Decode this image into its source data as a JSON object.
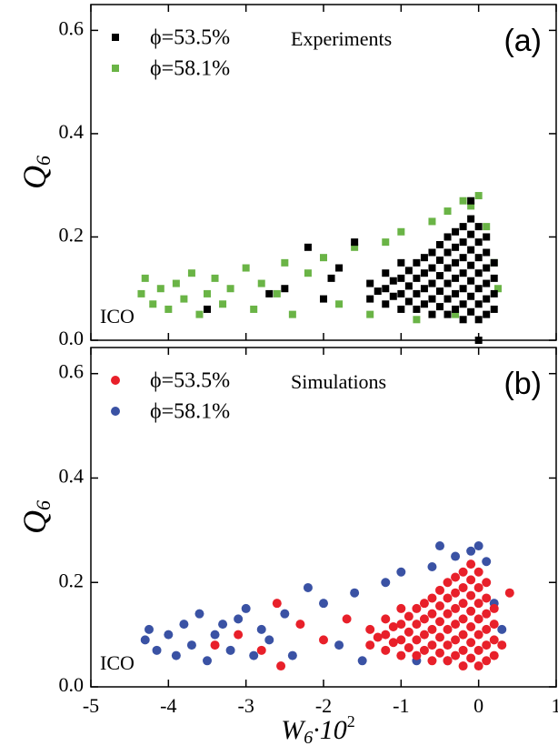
{
  "chart_data": [
    {
      "type": "scatter",
      "title": "Experiments",
      "panel_label": "(a)",
      "note": "ICO",
      "y_label": {
        "main": "Q",
        "sub": "6"
      },
      "xlim": [
        -5,
        1
      ],
      "ylim": [
        0,
        0.65
      ],
      "xticks": [
        -5,
        -4,
        -3,
        -2,
        -1,
        0,
        1
      ],
      "yticks": [
        {
          "value": 0,
          "label": "0.0"
        },
        {
          "value": 0.2,
          "label": "0.2"
        },
        {
          "value": 0.4,
          "label": "0.4"
        },
        {
          "value": 0.6,
          "label": "0.6"
        }
      ],
      "series": [
        {
          "name": "ϕ=53.5%",
          "color": "#000000",
          "marker": "square",
          "x": [
            -3.5,
            -2.7,
            -2.2,
            -1.8,
            -1.6,
            -2.5,
            -2.0,
            -1.9,
            0.0,
            -0.1,
            -1.4,
            -1.4,
            -1.3,
            -1.2,
            -1.2,
            -1.2,
            -1.1,
            -1.1,
            -1.0,
            -1.0,
            -1.0,
            -1.0,
            -0.9,
            -0.9,
            -0.9,
            -0.8,
            -0.8,
            -0.8,
            -0.8,
            -0.7,
            -0.7,
            -0.7,
            -0.7,
            -0.6,
            -0.6,
            -0.6,
            -0.6,
            -0.6,
            -0.5,
            -0.5,
            -0.5,
            -0.5,
            -0.5,
            -0.4,
            -0.4,
            -0.4,
            -0.4,
            -0.4,
            -0.4,
            -0.3,
            -0.3,
            -0.3,
            -0.3,
            -0.3,
            -0.3,
            -0.2,
            -0.2,
            -0.2,
            -0.2,
            -0.2,
            -0.2,
            -0.2,
            -0.1,
            -0.1,
            -0.1,
            -0.1,
            -0.1,
            -0.1,
            -0.1,
            0.0,
            0.0,
            0.0,
            0.0,
            0.0,
            0.0,
            0.0,
            0.1,
            0.1,
            0.1,
            0.1,
            0.1,
            0.1,
            0.2,
            0.2,
            0.2,
            0.2
          ],
          "values": [
            0.06,
            0.09,
            0.18,
            0.14,
            0.19,
            0.1,
            0.08,
            0.12,
            0.0,
            0.27,
            0.08,
            0.11,
            0.095,
            0.07,
            0.1,
            0.13,
            0.085,
            0.115,
            0.06,
            0.09,
            0.12,
            0.15,
            0.075,
            0.105,
            0.135,
            0.06,
            0.09,
            0.12,
            0.15,
            0.07,
            0.1,
            0.13,
            0.16,
            0.05,
            0.08,
            0.11,
            0.14,
            0.17,
            0.065,
            0.095,
            0.125,
            0.155,
            0.185,
            0.05,
            0.08,
            0.11,
            0.14,
            0.17,
            0.2,
            0.06,
            0.09,
            0.12,
            0.15,
            0.18,
            0.21,
            0.04,
            0.07,
            0.1,
            0.13,
            0.16,
            0.19,
            0.22,
            0.055,
            0.085,
            0.115,
            0.145,
            0.175,
            0.205,
            0.235,
            0.04,
            0.07,
            0.1,
            0.13,
            0.16,
            0.19,
            0.22,
            0.05,
            0.08,
            0.11,
            0.14,
            0.17,
            0.2,
            0.06,
            0.09,
            0.12,
            0.15
          ]
        },
        {
          "name": "ϕ=58.1%",
          "color": "#6ab446",
          "marker": "square",
          "x": [
            -4.35,
            -4.3,
            -4.2,
            -4.1,
            -4.0,
            -3.9,
            -3.8,
            -3.7,
            -3.6,
            -3.5,
            -3.4,
            -3.3,
            -3.2,
            -3.0,
            -2.9,
            -2.8,
            -2.6,
            -2.5,
            -2.4,
            -2.2,
            -2.0,
            -1.8,
            -1.6,
            -1.4,
            -1.2,
            -1.0,
            -0.8,
            -0.6,
            -0.4,
            -0.2,
            -0.1,
            0.0,
            0.1,
            0.2,
            0.25,
            -0.3
          ],
          "values": [
            0.09,
            0.12,
            0.07,
            0.1,
            0.06,
            0.11,
            0.08,
            0.13,
            0.05,
            0.09,
            0.12,
            0.07,
            0.1,
            0.14,
            0.06,
            0.11,
            0.09,
            0.15,
            0.05,
            0.13,
            0.16,
            0.07,
            0.18,
            0.05,
            0.19,
            0.21,
            0.04,
            0.23,
            0.25,
            0.27,
            0.26,
            0.28,
            0.22,
            0.15,
            0.1,
            0.05
          ]
        }
      ]
    },
    {
      "type": "scatter",
      "title": "Simulations",
      "panel_label": "(b)",
      "note": "ICO",
      "y_label": {
        "main": "Q",
        "sub": "6"
      },
      "x_label": {
        "main": "W",
        "sub": "6",
        "factor": "·10",
        "exp": "2"
      },
      "xlim": [
        -5,
        1
      ],
      "ylim": [
        0,
        0.65
      ],
      "xticks": [
        -5,
        -4,
        -3,
        -2,
        -1,
        0,
        1
      ],
      "yticks": [
        {
          "value": 0,
          "label": "0.0"
        },
        {
          "value": 0.2,
          "label": "0.2"
        },
        {
          "value": 0.4,
          "label": "0.4"
        },
        {
          "value": 0.6,
          "label": "0.6"
        }
      ],
      "series": [
        {
          "name": "ϕ=53.5%",
          "color": "#e8202a",
          "marker": "circle",
          "x": [
            -3.4,
            -3.1,
            -2.8,
            -2.6,
            -2.55,
            -2.3,
            -2.0,
            -1.7,
            0.4,
            0.3,
            -1.4,
            -1.4,
            -1.3,
            -1.2,
            -1.2,
            -1.2,
            -1.1,
            -1.1,
            -1.0,
            -1.0,
            -1.0,
            -1.0,
            -0.9,
            -0.9,
            -0.9,
            -0.8,
            -0.8,
            -0.8,
            -0.8,
            -0.7,
            -0.7,
            -0.7,
            -0.7,
            -0.6,
            -0.6,
            -0.6,
            -0.6,
            -0.6,
            -0.5,
            -0.5,
            -0.5,
            -0.5,
            -0.5,
            -0.4,
            -0.4,
            -0.4,
            -0.4,
            -0.4,
            -0.4,
            -0.3,
            -0.3,
            -0.3,
            -0.3,
            -0.3,
            -0.3,
            -0.2,
            -0.2,
            -0.2,
            -0.2,
            -0.2,
            -0.2,
            -0.2,
            -0.1,
            -0.1,
            -0.1,
            -0.1,
            -0.1,
            -0.1,
            -0.1,
            0.0,
            0.0,
            0.0,
            0.0,
            0.0,
            0.0,
            0.0,
            0.1,
            0.1,
            0.1,
            0.1,
            0.1,
            0.1,
            0.2,
            0.2,
            0.2,
            0.2
          ],
          "values": [
            0.08,
            0.1,
            0.07,
            0.16,
            0.04,
            0.12,
            0.09,
            0.13,
            0.18,
            0.08,
            0.08,
            0.11,
            0.095,
            0.07,
            0.1,
            0.13,
            0.085,
            0.115,
            0.06,
            0.09,
            0.12,
            0.15,
            0.075,
            0.105,
            0.135,
            0.06,
            0.09,
            0.12,
            0.15,
            0.07,
            0.1,
            0.13,
            0.16,
            0.05,
            0.08,
            0.11,
            0.14,
            0.17,
            0.065,
            0.095,
            0.125,
            0.155,
            0.185,
            0.05,
            0.08,
            0.11,
            0.14,
            0.17,
            0.2,
            0.06,
            0.09,
            0.12,
            0.15,
            0.18,
            0.21,
            0.04,
            0.07,
            0.1,
            0.13,
            0.16,
            0.19,
            0.22,
            0.055,
            0.085,
            0.115,
            0.145,
            0.175,
            0.205,
            0.235,
            0.04,
            0.07,
            0.1,
            0.13,
            0.16,
            0.19,
            0.22,
            0.05,
            0.08,
            0.11,
            0.14,
            0.17,
            0.2,
            0.06,
            0.09,
            0.12,
            0.15
          ]
        },
        {
          "name": "ϕ=58.1%",
          "color": "#3a52a4",
          "marker": "circle",
          "x": [
            -4.3,
            -4.25,
            -4.15,
            -4.0,
            -3.9,
            -3.8,
            -3.7,
            -3.6,
            -3.5,
            -3.4,
            -3.3,
            -3.2,
            -3.1,
            -3.0,
            -2.9,
            -2.8,
            -2.7,
            -2.5,
            -2.4,
            -2.2,
            -2.0,
            -1.8,
            -1.6,
            -1.5,
            -1.2,
            -1.0,
            -0.8,
            -0.6,
            -0.5,
            -0.3,
            -0.1,
            0.0,
            0.1,
            0.2,
            0.3,
            -0.4
          ],
          "values": [
            0.09,
            0.11,
            0.07,
            0.1,
            0.06,
            0.12,
            0.08,
            0.14,
            0.05,
            0.1,
            0.12,
            0.07,
            0.13,
            0.15,
            0.06,
            0.11,
            0.09,
            0.14,
            0.06,
            0.19,
            0.16,
            0.08,
            0.18,
            0.05,
            0.2,
            0.22,
            0.05,
            0.23,
            0.27,
            0.25,
            0.26,
            0.27,
            0.24,
            0.16,
            0.11,
            0.05
          ]
        }
      ]
    }
  ]
}
